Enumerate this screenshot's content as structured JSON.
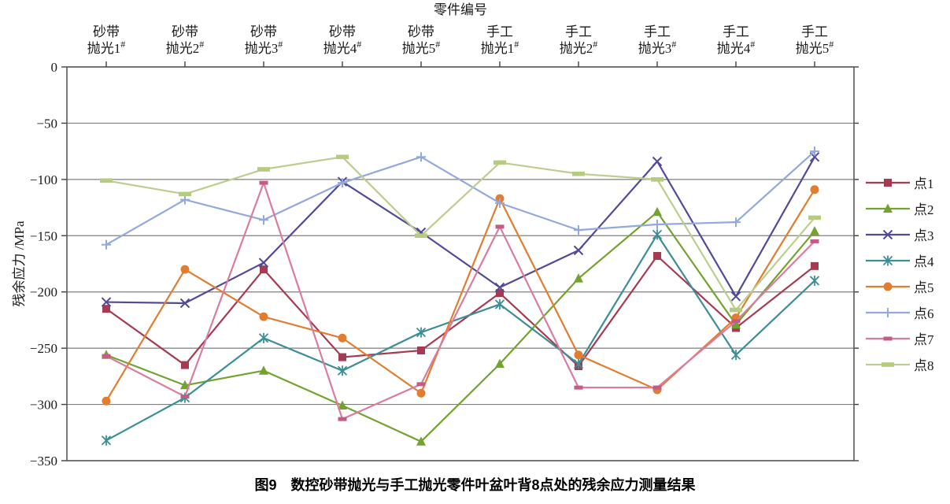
{
  "figure": {
    "caption": "图9　数控砂带抛光与手工抛光零件叶盆叶背8点处的残余应力测量结果"
  },
  "chart_data": {
    "type": "line",
    "top_axis_title": "零件编号",
    "ylabel": "残余应力 /MPa",
    "ylim": [
      0,
      -350
    ],
    "yticks": [
      0,
      -50,
      -100,
      -150,
      -200,
      -250,
      -300,
      -350
    ],
    "grid": "horizontal",
    "legend_position": "right",
    "superscript": "#",
    "categories": [
      {
        "line1": "砂带",
        "line2": "抛光1"
      },
      {
        "line1": "砂带",
        "line2": "抛光2"
      },
      {
        "line1": "砂带",
        "line2": "抛光3"
      },
      {
        "line1": "砂带",
        "line2": "抛光4"
      },
      {
        "line1": "砂带",
        "line2": "抛光5"
      },
      {
        "line1": "手工",
        "line2": "抛光1"
      },
      {
        "line1": "手工",
        "line2": "抛光2"
      },
      {
        "line1": "手工",
        "line2": "抛光3"
      },
      {
        "line1": "手工",
        "line2": "抛光4"
      },
      {
        "line1": "手工",
        "line2": "抛光5"
      }
    ],
    "series": [
      {
        "name": "点1",
        "marker": "square",
        "color": "#A63A50",
        "values": [
          -215,
          -265,
          -180,
          -258,
          -252,
          -201,
          -266,
          -168,
          -232,
          -177
        ]
      },
      {
        "name": "点2",
        "marker": "triangle",
        "color": "#72A32E",
        "values": [
          -256,
          -283,
          -270,
          -301,
          -333,
          -264,
          -188,
          -129,
          -229,
          -146
        ]
      },
      {
        "name": "点3",
        "marker": "x",
        "color": "#514A99",
        "values": [
          -209,
          -210,
          -174,
          -102,
          -147,
          -196,
          -163,
          -84,
          -204,
          -80
        ]
      },
      {
        "name": "点4",
        "marker": "star",
        "color": "#3C8E96",
        "values": [
          -332,
          -294,
          -241,
          -270,
          -236,
          -211,
          -264,
          -149,
          -256,
          -190
        ]
      },
      {
        "name": "点5",
        "marker": "circle",
        "color": "#E27D30",
        "values": [
          -297,
          -180,
          -222,
          -241,
          -290,
          -117,
          -256,
          -287,
          -223,
          -109
        ]
      },
      {
        "name": "点6",
        "marker": "plus",
        "color": "#91A9DC",
        "values": [
          -158,
          -118,
          -136,
          -103,
          -80,
          -121,
          -145,
          -140,
          -138,
          -75
        ]
      },
      {
        "name": "点7",
        "marker": "dash",
        "color": "#D87CA0",
        "marker_color": "#C25B86",
        "values": [
          -257,
          -293,
          -103,
          -313,
          -282,
          -142,
          -285,
          -285,
          -226,
          -155
        ]
      },
      {
        "name": "点8",
        "marker": "dash-wide",
        "color": "#BCCE8E",
        "marker_color": "#B5CB80",
        "values": [
          -101,
          -113,
          -91,
          -80,
          -150,
          -85,
          -95,
          -100,
          -216,
          -134
        ]
      }
    ],
    "axis_colors": {
      "grid": "#7f7f7f",
      "border": "#595959",
      "tick": "#404040"
    }
  }
}
